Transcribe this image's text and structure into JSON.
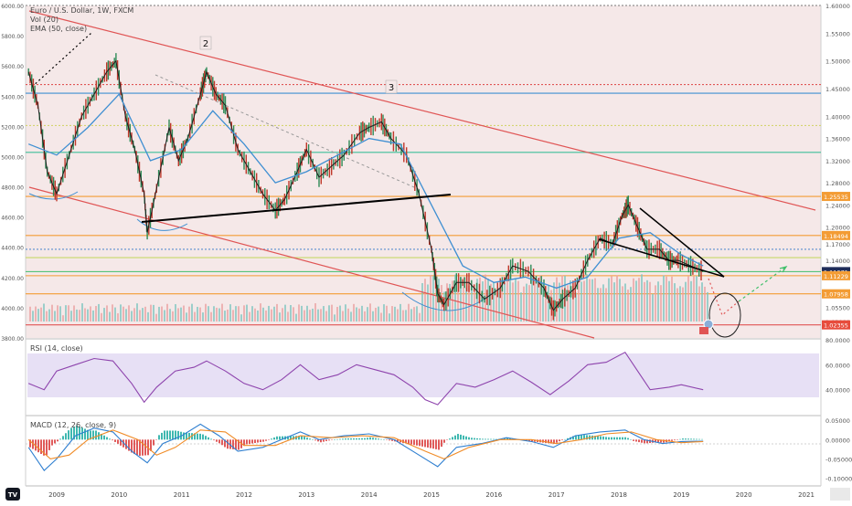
{
  "header": {
    "symbol_line": "Euro / U.S. Dollar, 1W, FXCM",
    "volume_line": "Vol (20)",
    "ema_line": "EMA (50, close)"
  },
  "panes": {
    "rsi_label": "RSI (14, close)",
    "macd_label": "MACD (12, 26, close, 9)"
  },
  "wave_labels": [
    "2",
    "3"
  ],
  "colors": {
    "background": "#ffffff",
    "pane_shade": "#f5e8e8",
    "rsi_band": "#e7e0f5",
    "ema": "#3f8fd2",
    "channel": "#e05555",
    "trendline": "#000000",
    "rsi_line": "#8e44ad",
    "macd_line": "#2f7fd0",
    "signal_line": "#f08c28",
    "hist_up": "#3fb8b0",
    "hist_down": "#e05a5a",
    "candle_up": "#2e8b57",
    "candle_down": "#c0392b",
    "projection": "#3fbf6a"
  },
  "chart_data": [
    {
      "type": "candlestick",
      "title": "Euro / U.S. Dollar, 1W, FXCM",
      "x_ticks": [
        "2009",
        "2010",
        "2011",
        "2012",
        "2013",
        "2014",
        "2015",
        "2016",
        "2017",
        "2018",
        "2019",
        "2020",
        "2021"
      ],
      "price_ticks_right": [
        "1.60000",
        "1.55000",
        "1.50000",
        "1.45000",
        "1.40000",
        "1.36000",
        "1.32000",
        "1.28000",
        "1.24000",
        "1.20000",
        "1.17000",
        "1.14000",
        "1.11000",
        "1.08000",
        "1.05500",
        "1.03000"
      ],
      "volume_ticks_left": [
        "6000.00",
        "5800.00",
        "5600.00",
        "5400.00",
        "5200.00",
        "5000.00",
        "4800.00",
        "4600.00",
        "4400.00",
        "4200.00",
        "4000.00",
        "3800.00"
      ],
      "ylim": [
        1.0,
        1.6
      ],
      "last_price": "1.11971",
      "level_tags": [
        {
          "label": "1.25535",
          "value": 1.2554,
          "color": "#f39c34"
        },
        {
          "label": "1.18494",
          "value": 1.1849,
          "color": "#f39c34"
        },
        {
          "label": "1.11971",
          "value": 1.1197,
          "color": "#1f2d5a"
        },
        {
          "label": "1.11229",
          "value": 1.1123,
          "color": "#f39c34"
        },
        {
          "label": "1.07958",
          "value": 1.0796,
          "color": "#f39c34"
        },
        {
          "label": "1.02355",
          "value": 1.0236,
          "color": "#e74c3c"
        }
      ],
      "horizontal_levels": [
        {
          "value": 1.4573,
          "color": "#e05555",
          "style": "dotted"
        },
        {
          "value": 1.4416,
          "color": "#3f8fd2",
          "style": "solid"
        },
        {
          "value": 1.3833,
          "color": "#d4d470",
          "style": "dotted"
        },
        {
          "value": 1.335,
          "color": "#3fbf9a",
          "style": "solid"
        },
        {
          "value": 1.2554,
          "color": "#f39c34",
          "style": "solid"
        },
        {
          "value": 1.1849,
          "color": "#f39c34",
          "style": "solid"
        },
        {
          "value": 1.16,
          "color": "#5a8ed0",
          "style": "dotted"
        },
        {
          "value": 1.145,
          "color": "#c7d96a",
          "style": "solid"
        },
        {
          "value": 1.1197,
          "color": "#3fbf6a",
          "style": "solid"
        },
        {
          "value": 1.1123,
          "color": "#f39c34",
          "style": "solid"
        },
        {
          "value": 1.0796,
          "color": "#f39c34",
          "style": "solid"
        },
        {
          "value": 1.0236,
          "color": "#e05555",
          "style": "solid"
        }
      ],
      "price_path": [
        [
          2008.55,
          1.48
        ],
        [
          2008.7,
          1.42
        ],
        [
          2008.85,
          1.3
        ],
        [
          2009.0,
          1.26
        ],
        [
          2009.2,
          1.33
        ],
        [
          2009.4,
          1.4
        ],
        [
          2009.6,
          1.44
        ],
        [
          2009.8,
          1.48
        ],
        [
          2009.95,
          1.5
        ],
        [
          2010.1,
          1.4
        ],
        [
          2010.25,
          1.34
        ],
        [
          2010.4,
          1.26
        ],
        [
          2010.45,
          1.19
        ],
        [
          2010.6,
          1.27
        ],
        [
          2010.8,
          1.38
        ],
        [
          2010.95,
          1.32
        ],
        [
          2011.1,
          1.36
        ],
        [
          2011.3,
          1.44
        ],
        [
          2011.4,
          1.48
        ],
        [
          2011.55,
          1.44
        ],
        [
          2011.7,
          1.42
        ],
        [
          2011.9,
          1.34
        ],
        [
          2012.1,
          1.3
        ],
        [
          2012.3,
          1.26
        ],
        [
          2012.5,
          1.23
        ],
        [
          2012.65,
          1.25
        ],
        [
          2012.85,
          1.3
        ],
        [
          2013.0,
          1.34
        ],
        [
          2013.2,
          1.29
        ],
        [
          2013.4,
          1.31
        ],
        [
          2013.6,
          1.33
        ],
        [
          2013.85,
          1.37
        ],
        [
          2014.0,
          1.38
        ],
        [
          2014.2,
          1.39
        ],
        [
          2014.35,
          1.36
        ],
        [
          2014.6,
          1.33
        ],
        [
          2014.8,
          1.26
        ],
        [
          2015.0,
          1.16
        ],
        [
          2015.1,
          1.08
        ],
        [
          2015.2,
          1.06
        ],
        [
          2015.4,
          1.1
        ],
        [
          2015.6,
          1.1
        ],
        [
          2015.85,
          1.07
        ],
        [
          2016.1,
          1.09
        ],
        [
          2016.3,
          1.13
        ],
        [
          2016.55,
          1.12
        ],
        [
          2016.8,
          1.09
        ],
        [
          2016.95,
          1.05
        ],
        [
          2017.1,
          1.07
        ],
        [
          2017.3,
          1.09
        ],
        [
          2017.5,
          1.14
        ],
        [
          2017.7,
          1.18
        ],
        [
          2017.9,
          1.17
        ],
        [
          2018.05,
          1.22
        ],
        [
          2018.15,
          1.24
        ],
        [
          2018.3,
          1.2
        ],
        [
          2018.45,
          1.16
        ],
        [
          2018.65,
          1.16
        ],
        [
          2018.8,
          1.14
        ],
        [
          2018.95,
          1.14
        ],
        [
          2019.15,
          1.13
        ],
        [
          2019.35,
          1.12
        ]
      ],
      "ema_path": [
        [
          2008.55,
          1.35
        ],
        [
          2009.0,
          1.33
        ],
        [
          2009.5,
          1.38
        ],
        [
          2010.0,
          1.44
        ],
        [
          2010.5,
          1.32
        ],
        [
          2011.0,
          1.34
        ],
        [
          2011.5,
          1.41
        ],
        [
          2012.0,
          1.35
        ],
        [
          2012.5,
          1.28
        ],
        [
          2013.0,
          1.3
        ],
        [
          2013.5,
          1.33
        ],
        [
          2014.0,
          1.36
        ],
        [
          2014.5,
          1.35
        ],
        [
          2015.0,
          1.24
        ],
        [
          2015.5,
          1.13
        ],
        [
          2016.0,
          1.1
        ],
        [
          2016.5,
          1.11
        ],
        [
          2017.0,
          1.09
        ],
        [
          2017.5,
          1.11
        ],
        [
          2018.0,
          1.18
        ],
        [
          2018.5,
          1.19
        ],
        [
          2019.0,
          1.15
        ],
        [
          2019.35,
          1.13
        ]
      ],
      "rsi": {
        "label": "RSI (14, close)",
        "ticks": [
          "80.0000",
          "60.0000",
          "40.0000"
        ],
        "band": [
          30,
          70
        ],
        "ylim": [
          20,
          80
        ],
        "path": [
          [
            2008.55,
            45
          ],
          [
            2008.8,
            40
          ],
          [
            2009.0,
            55
          ],
          [
            2009.3,
            60
          ],
          [
            2009.6,
            65
          ],
          [
            2009.9,
            63
          ],
          [
            2010.2,
            45
          ],
          [
            2010.4,
            30
          ],
          [
            2010.6,
            42
          ],
          [
            2010.9,
            55
          ],
          [
            2011.2,
            58
          ],
          [
            2011.4,
            63
          ],
          [
            2011.7,
            55
          ],
          [
            2012.0,
            45
          ],
          [
            2012.3,
            40
          ],
          [
            2012.6,
            48
          ],
          [
            2012.9,
            60
          ],
          [
            2013.2,
            48
          ],
          [
            2013.5,
            52
          ],
          [
            2013.8,
            60
          ],
          [
            2014.1,
            56
          ],
          [
            2014.4,
            52
          ],
          [
            2014.7,
            42
          ],
          [
            2014.9,
            32
          ],
          [
            2015.1,
            28
          ],
          [
            2015.4,
            45
          ],
          [
            2015.7,
            42
          ],
          [
            2016.0,
            48
          ],
          [
            2016.3,
            55
          ],
          [
            2016.6,
            46
          ],
          [
            2016.9,
            36
          ],
          [
            2017.2,
            47
          ],
          [
            2017.5,
            60
          ],
          [
            2017.8,
            62
          ],
          [
            2018.1,
            70
          ],
          [
            2018.3,
            55
          ],
          [
            2018.5,
            40
          ],
          [
            2018.8,
            42
          ],
          [
            2019.0,
            44
          ],
          [
            2019.35,
            40
          ]
        ]
      },
      "macd": {
        "label": "MACD (12, 26, close, 9)",
        "ticks": [
          "0.05000",
          "0.00000",
          "-0.05000",
          "-0.10000"
        ],
        "ylim": [
          -0.12,
          0.06
        ],
        "macd_path": [
          [
            2008.55,
            -0.02
          ],
          [
            2008.8,
            -0.08
          ],
          [
            2009.0,
            -0.05
          ],
          [
            2009.3,
            0.01
          ],
          [
            2009.6,
            0.03
          ],
          [
            2009.9,
            0.02
          ],
          [
            2010.2,
            -0.03
          ],
          [
            2010.45,
            -0.06
          ],
          [
            2010.7,
            -0.01
          ],
          [
            2011.0,
            0.01
          ],
          [
            2011.3,
            0.04
          ],
          [
            2011.6,
            0.01
          ],
          [
            2011.9,
            -0.03
          ],
          [
            2012.3,
            -0.02
          ],
          [
            2012.6,
            0.0
          ],
          [
            2012.9,
            0.02
          ],
          [
            2013.2,
            0.0
          ],
          [
            2013.6,
            0.01
          ],
          [
            2014.0,
            0.015
          ],
          [
            2014.4,
            0.0
          ],
          [
            2014.8,
            -0.04
          ],
          [
            2015.1,
            -0.07
          ],
          [
            2015.4,
            -0.02
          ],
          [
            2015.8,
            -0.01
          ],
          [
            2016.2,
            0.005
          ],
          [
            2016.6,
            -0.005
          ],
          [
            2016.95,
            -0.02
          ],
          [
            2017.3,
            0.01
          ],
          [
            2017.7,
            0.02
          ],
          [
            2018.1,
            0.025
          ],
          [
            2018.4,
            0.0
          ],
          [
            2018.7,
            -0.01
          ],
          [
            2019.0,
            -0.005
          ],
          [
            2019.35,
            -0.004
          ]
        ],
        "signal_path": [
          [
            2008.55,
            0.0
          ],
          [
            2008.9,
            -0.05
          ],
          [
            2009.2,
            -0.04
          ],
          [
            2009.5,
            0.0
          ],
          [
            2009.9,
            0.025
          ],
          [
            2010.3,
            0.0
          ],
          [
            2010.6,
            -0.04
          ],
          [
            2010.9,
            -0.02
          ],
          [
            2011.3,
            0.025
          ],
          [
            2011.7,
            0.02
          ],
          [
            2012.0,
            -0.015
          ],
          [
            2012.5,
            -0.015
          ],
          [
            2012.9,
            0.01
          ],
          [
            2013.4,
            0.005
          ],
          [
            2013.9,
            0.01
          ],
          [
            2014.4,
            0.005
          ],
          [
            2014.9,
            -0.03
          ],
          [
            2015.2,
            -0.05
          ],
          [
            2015.6,
            -0.02
          ],
          [
            2016.1,
            0.0
          ],
          [
            2016.6,
            0.0
          ],
          [
            2017.0,
            -0.01
          ],
          [
            2017.4,
            0.0
          ],
          [
            2017.8,
            0.015
          ],
          [
            2018.2,
            0.02
          ],
          [
            2018.6,
            0.0
          ],
          [
            2019.0,
            -0.008
          ],
          [
            2019.35,
            -0.005
          ]
        ]
      }
    }
  ]
}
